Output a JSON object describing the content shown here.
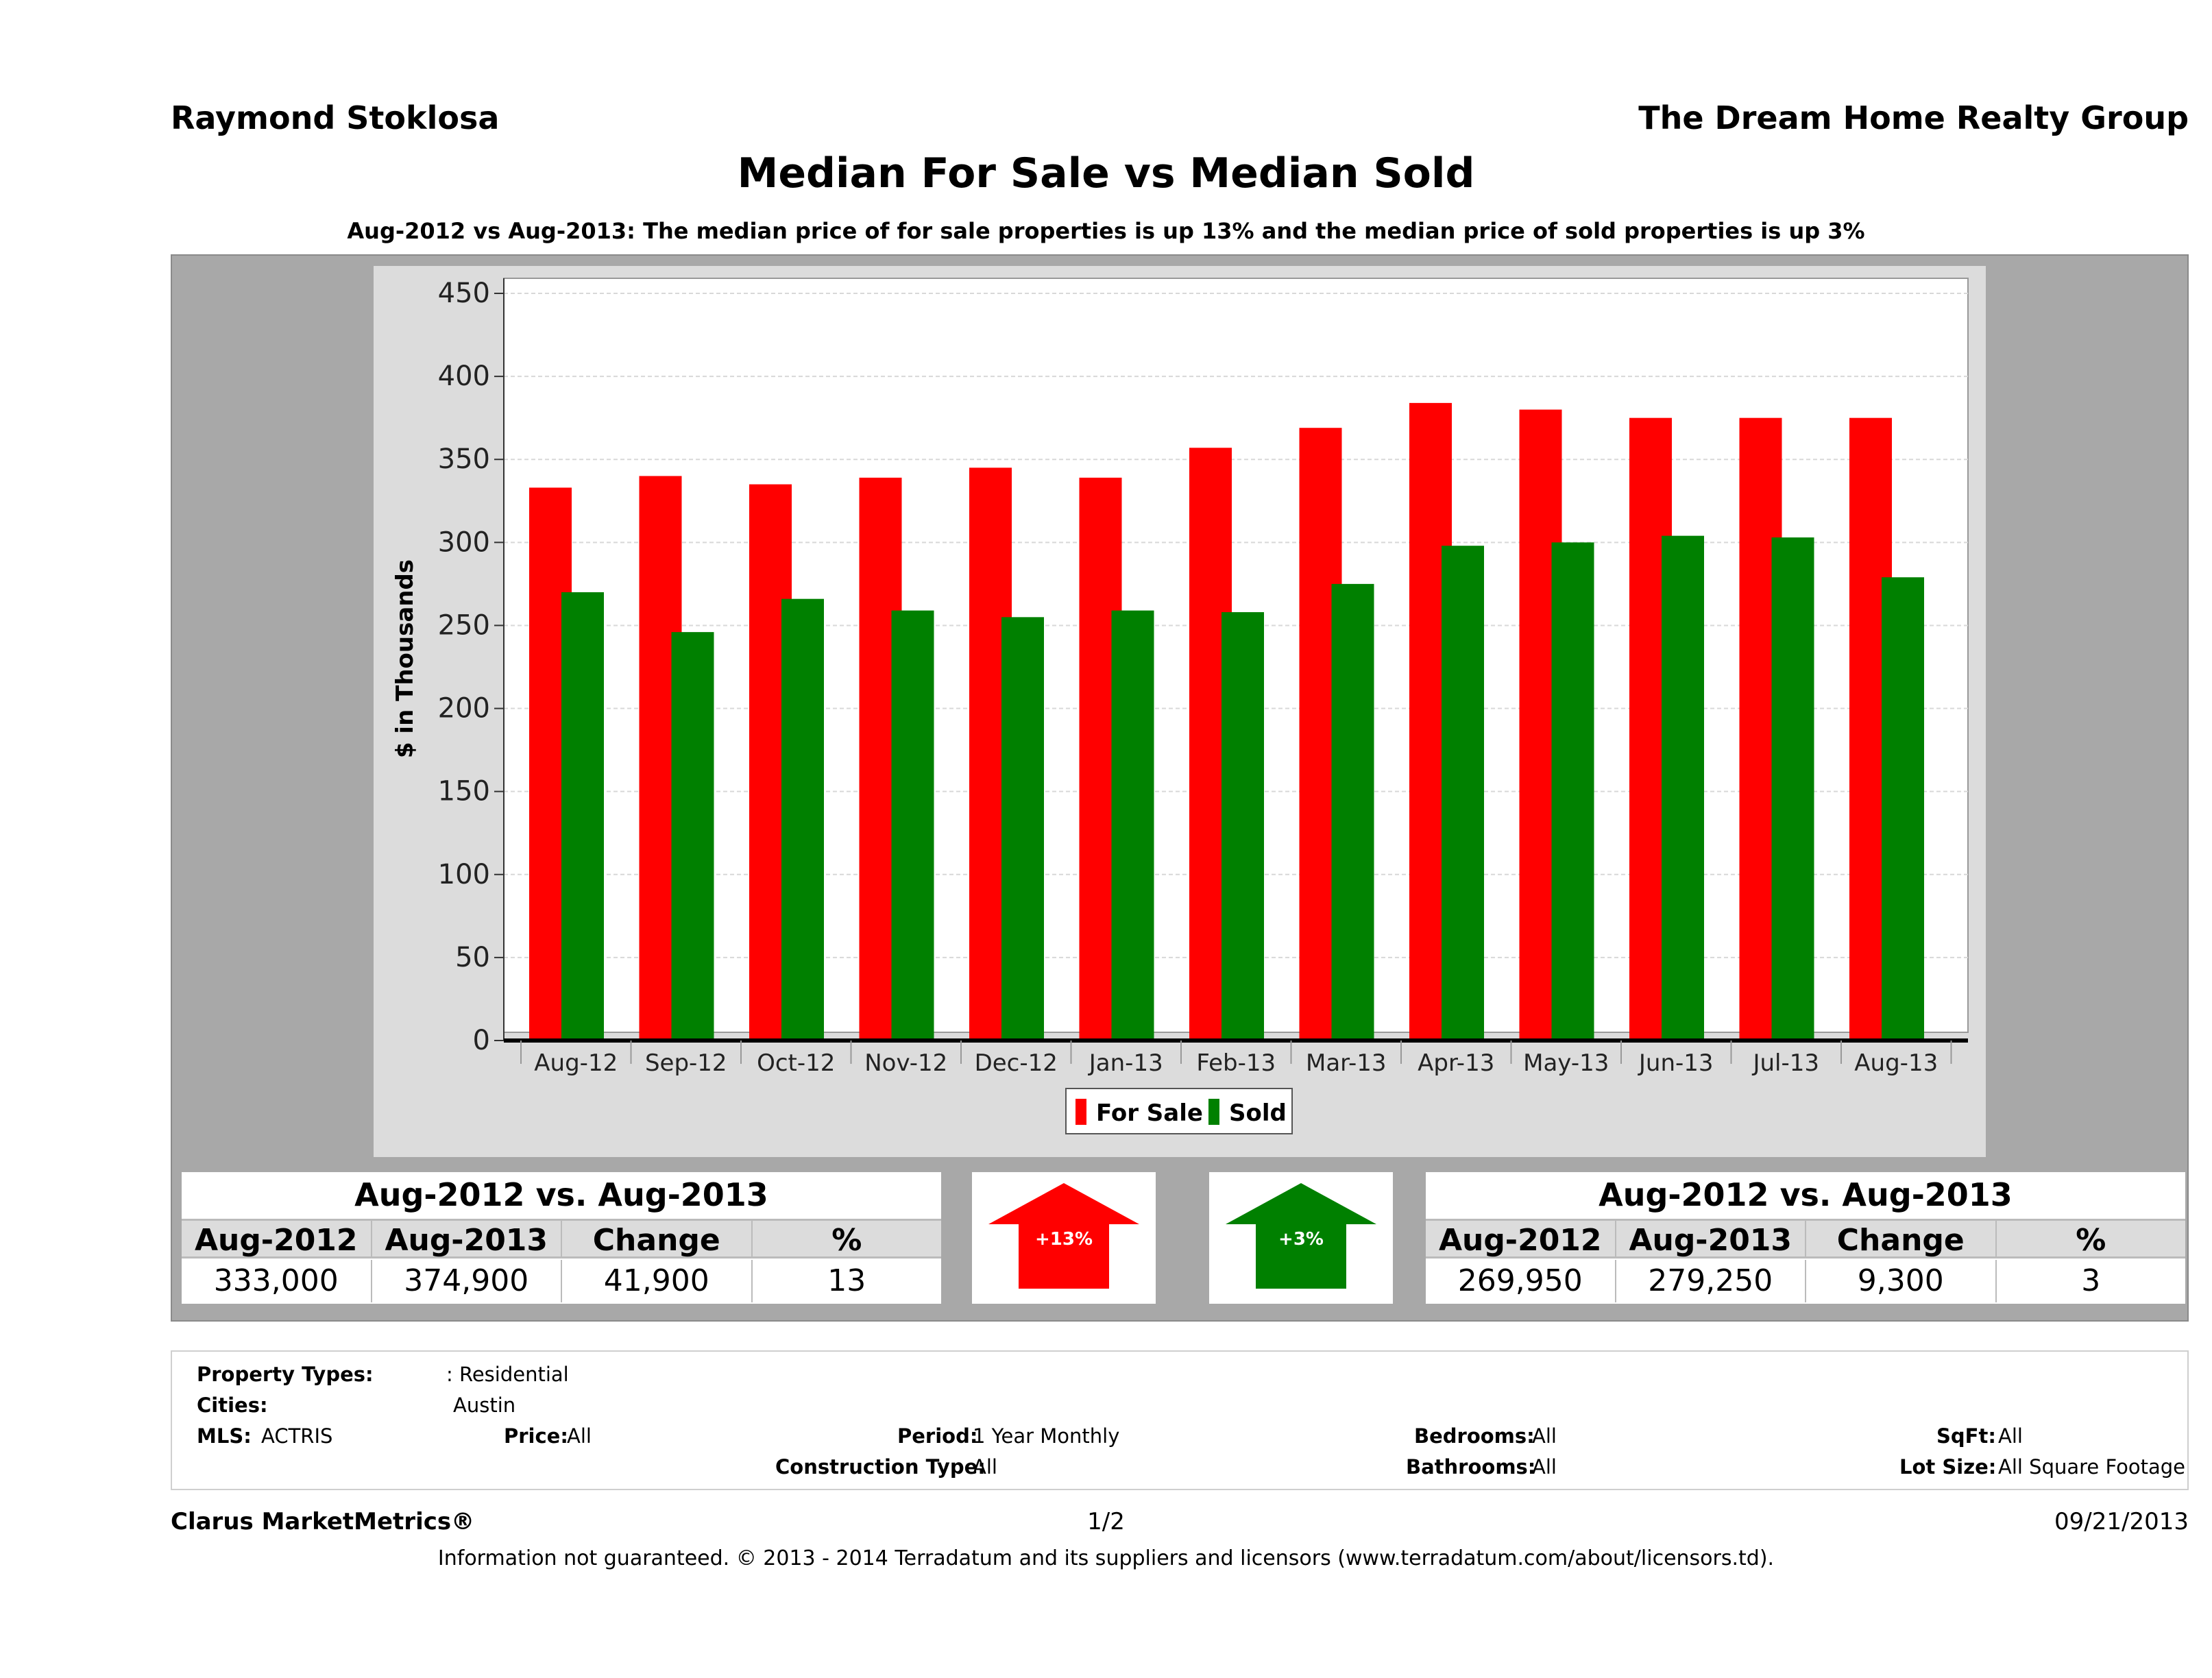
{
  "header": {
    "agent": "Raymond Stoklosa",
    "company": "The Dream Home Realty Group"
  },
  "title": "Median For Sale vs Median Sold",
  "subtitle": "Aug-2012 vs Aug-2013: The median price of for sale properties is up 13% and the median price of sold properties is up 3%",
  "chart_data": {
    "type": "bar",
    "categories": [
      "Aug-12",
      "Sep-12",
      "Oct-12",
      "Nov-12",
      "Dec-12",
      "Jan-13",
      "Feb-13",
      "Mar-13",
      "Apr-13",
      "May-13",
      "Jun-13",
      "Jul-13",
      "Aug-13"
    ],
    "series": [
      {
        "name": "For Sale",
        "color": "#ff0000",
        "values": [
          333,
          340,
          335,
          339,
          345,
          339,
          357,
          369,
          384,
          380,
          375,
          375,
          375
        ]
      },
      {
        "name": "Sold",
        "color": "#008000",
        "values": [
          270,
          246,
          266,
          259,
          255,
          259,
          258,
          275,
          298,
          300,
          304,
          303,
          279
        ]
      }
    ],
    "ylabel": "$ in Thousands",
    "xlabel": "",
    "ylim": [
      0,
      450
    ],
    "yticks": [
      0,
      50,
      100,
      150,
      200,
      250,
      300,
      350,
      400,
      450
    ],
    "grid": true,
    "legend_position": "bottom"
  },
  "stats_for_sale": {
    "title": "Aug-2012 vs. Aug-2013",
    "headers": [
      "Aug-2012",
      "Aug-2013",
      "Change",
      "%"
    ],
    "values": [
      "333,000",
      "374,900",
      "41,900",
      "13"
    ],
    "arrow_label": "+13%",
    "arrow_color": "#ff0000"
  },
  "stats_sold": {
    "title": "Aug-2012 vs. Aug-2013",
    "headers": [
      "Aug-2012",
      "Aug-2013",
      "Change",
      "%"
    ],
    "values": [
      "269,950",
      "279,250",
      "9,300",
      "3"
    ],
    "arrow_label": "+3%",
    "arrow_color": "#008000"
  },
  "filters": {
    "property_types_label": "Property Types:",
    "property_types_value": ": Residential",
    "cities_label": "Cities:",
    "cities_value": "Austin",
    "mls_label": "MLS:",
    "mls_value": "ACTRIS",
    "price_label": "Price:",
    "price_value": "All",
    "period_label": "Period:",
    "period_value": "1 Year Monthly",
    "construction_label": "Construction Type:",
    "construction_value": "All",
    "bedrooms_label": "Bedrooms:",
    "bedrooms_value": "All",
    "bathrooms_label": "Bathrooms:",
    "bathrooms_value": "All",
    "sqft_label": "SqFt:",
    "sqft_value": "All",
    "lotsize_label": "Lot Size:",
    "lotsize_value": "All Square Footage"
  },
  "footer": {
    "brand": "Clarus MarketMetrics®",
    "page": "1/2",
    "date": "09/21/2013",
    "disclaimer": "Information not guaranteed. © 2013 - 2014 Terradatum and its suppliers and licensors (www.terradatum.com/about/licensors.td)."
  }
}
